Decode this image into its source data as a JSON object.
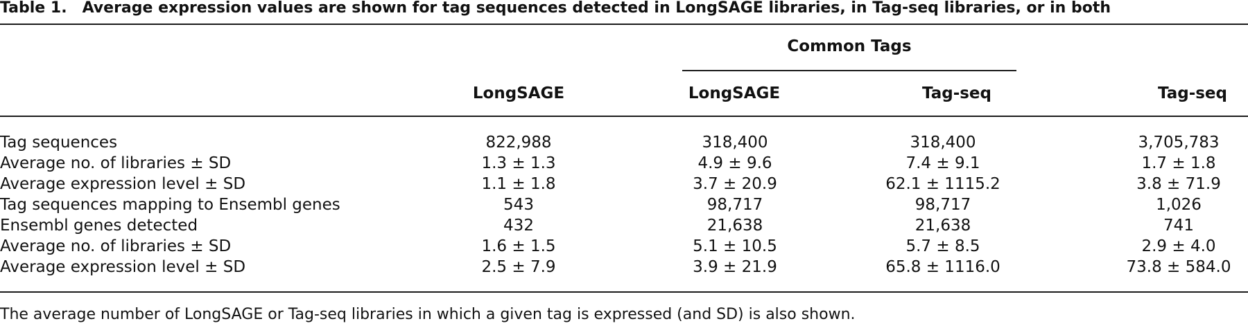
{
  "caption": {
    "label": "Table 1.",
    "text": "Average expression values are shown for tag sequences detected in LongSAGE libraries, in Tag-seq libraries, or in both"
  },
  "spanning_header": "Common Tags",
  "columns": [
    "LongSAGE",
    "LongSAGE",
    "Tag-seq",
    "Tag-seq"
  ],
  "rows": [
    {
      "label": "Tag sequences",
      "values": [
        "822,988",
        "318,400",
        "318,400",
        "3,705,783"
      ]
    },
    {
      "label": "Average no. of libraries ± SD",
      "values": [
        "1.3 ± 1.3",
        "4.9 ± 9.6",
        "7.4 ± 9.1",
        "1.7 ± 1.8"
      ]
    },
    {
      "label": "Average expression level ± SD",
      "values": [
        "1.1 ± 1.8",
        "3.7 ± 20.9",
        "62.1 ± 1115.2",
        "3.8 ± 71.9"
      ]
    },
    {
      "label": "Tag sequences mapping to Ensembl genes",
      "values": [
        "543",
        "98,717",
        "98,717",
        "1,026"
      ]
    },
    {
      "label": "Ensembl genes detected",
      "values": [
        "432",
        "21,638",
        "21,638",
        "741"
      ]
    },
    {
      "label": "Average no. of libraries ± SD",
      "values": [
        "1.6 ± 1.5",
        "5.1 ± 10.5",
        "5.7 ± 8.5",
        "2.9 ± 4.0"
      ]
    },
    {
      "label": "Average expression level ± SD",
      "values": [
        "2.5 ± 7.9",
        "3.9 ± 21.9",
        "65.8 ± 1116.0",
        "73.8 ± 584.0"
      ]
    }
  ],
  "footnote": "The average number of LongSAGE or Tag-seq libraries in which a given tag is expressed (and SD) is also shown."
}
